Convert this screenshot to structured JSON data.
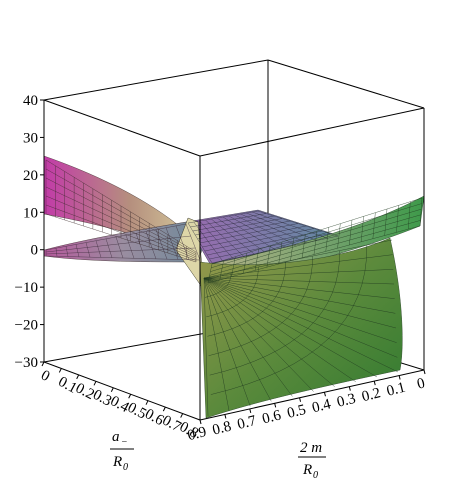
{
  "chart_data": {
    "type": "surface3d",
    "title": "",
    "z_axis": {
      "range": [
        -30,
        40
      ],
      "ticks": [
        "40",
        "30",
        "20",
        "10",
        "0",
        "−10",
        "−20",
        "−30"
      ]
    },
    "x_axis": {
      "label_numerator": "a",
      "label_numerator_sub": "−",
      "label_denominator": "R",
      "label_denominator_sub": "0",
      "range": [
        0,
        0.9
      ],
      "ticks": [
        "0",
        "0.1",
        "0.2",
        "0.3",
        "0.4",
        "0.5",
        "0.6",
        "0.7",
        "0.8"
      ]
    },
    "y_axis": {
      "label_numerator": "2 m",
      "label_denominator": "R",
      "label_denominator_sub": "0",
      "range": [
        0,
        0.9
      ],
      "ticks": [
        "0.9",
        "0.8",
        "0.7",
        "0.6",
        "0.5",
        "0.4",
        "0.3",
        "0.2",
        "0.1",
        "0"
      ]
    },
    "surfaces": [
      {
        "corner_values": {
          "x0_y09": 25,
          "x0_y0": 0,
          "x09_y0": 14,
          "x09_y09": -30
        },
        "colors": [
          "#cc33aa",
          "#8a6a9a",
          "#d9cf9a",
          "#2e8a3a"
        ]
      }
    ]
  }
}
